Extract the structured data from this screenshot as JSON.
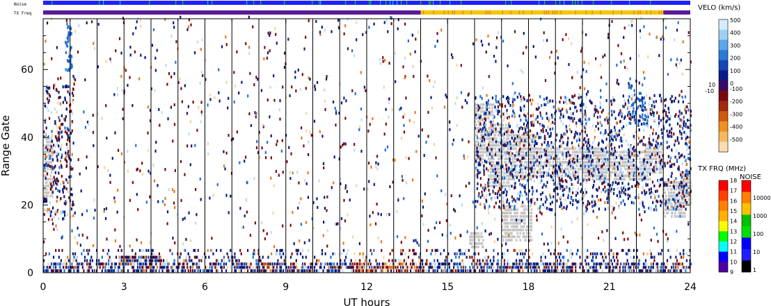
{
  "chart_data": {
    "type": "heatmap",
    "xlabel": "UT hours",
    "ylabel": "Range Gate",
    "xlim": [
      0,
      24
    ],
    "ylim": [
      0,
      75
    ],
    "x_ticks": [
      "0",
      "3",
      "6",
      "9",
      "12",
      "15",
      "18",
      "21",
      "24"
    ],
    "y_ticks": [
      "0",
      "20",
      "40",
      "60"
    ],
    "hour_lines": [
      1,
      2,
      3,
      4,
      5,
      6,
      7,
      8,
      9,
      10,
      11,
      12,
      13,
      14,
      15,
      16,
      17,
      18,
      19,
      20,
      21,
      22,
      23
    ],
    "strips": {
      "noise_label": "Noise",
      "txfreq_label": "TX Freq",
      "txfreq_change_hours": [
        14.0,
        23.0
      ]
    },
    "velocity_colorbar": {
      "label": "VELO (km/s)",
      "ticks": [
        "500",
        "400",
        "300",
        "200",
        "100",
        "0"
      ],
      "neg_ticks": [
        "-100",
        "-200",
        "-300",
        "-400",
        "-500"
      ],
      "zero_labels": [
        "10",
        "-10"
      ],
      "range": [
        -500,
        500
      ]
    },
    "txfreq_colorbar": {
      "label": "TX FRQ (MHz)",
      "ticks": [
        "18",
        "17",
        "16",
        "15",
        "14",
        "13",
        "12",
        "11",
        "10",
        "9"
      ]
    },
    "noise_colorbar": {
      "label": "NOISE",
      "ticks": [
        "10000",
        "1000",
        "100",
        "10",
        "1"
      ]
    },
    "colors": {
      "positive_dark": "#0a1a7a",
      "positive_mid": "#1f6fd6",
      "positive_light": "#bcdcf4",
      "negative_dark": "#7a0a0a",
      "negative_mid": "#e8781a",
      "negative_light": "#f7d2a0",
      "ground_scatter": "#c4c4c4",
      "strip_purple": "#5a1a9a",
      "strip_yellow": "#f4c800"
    }
  }
}
